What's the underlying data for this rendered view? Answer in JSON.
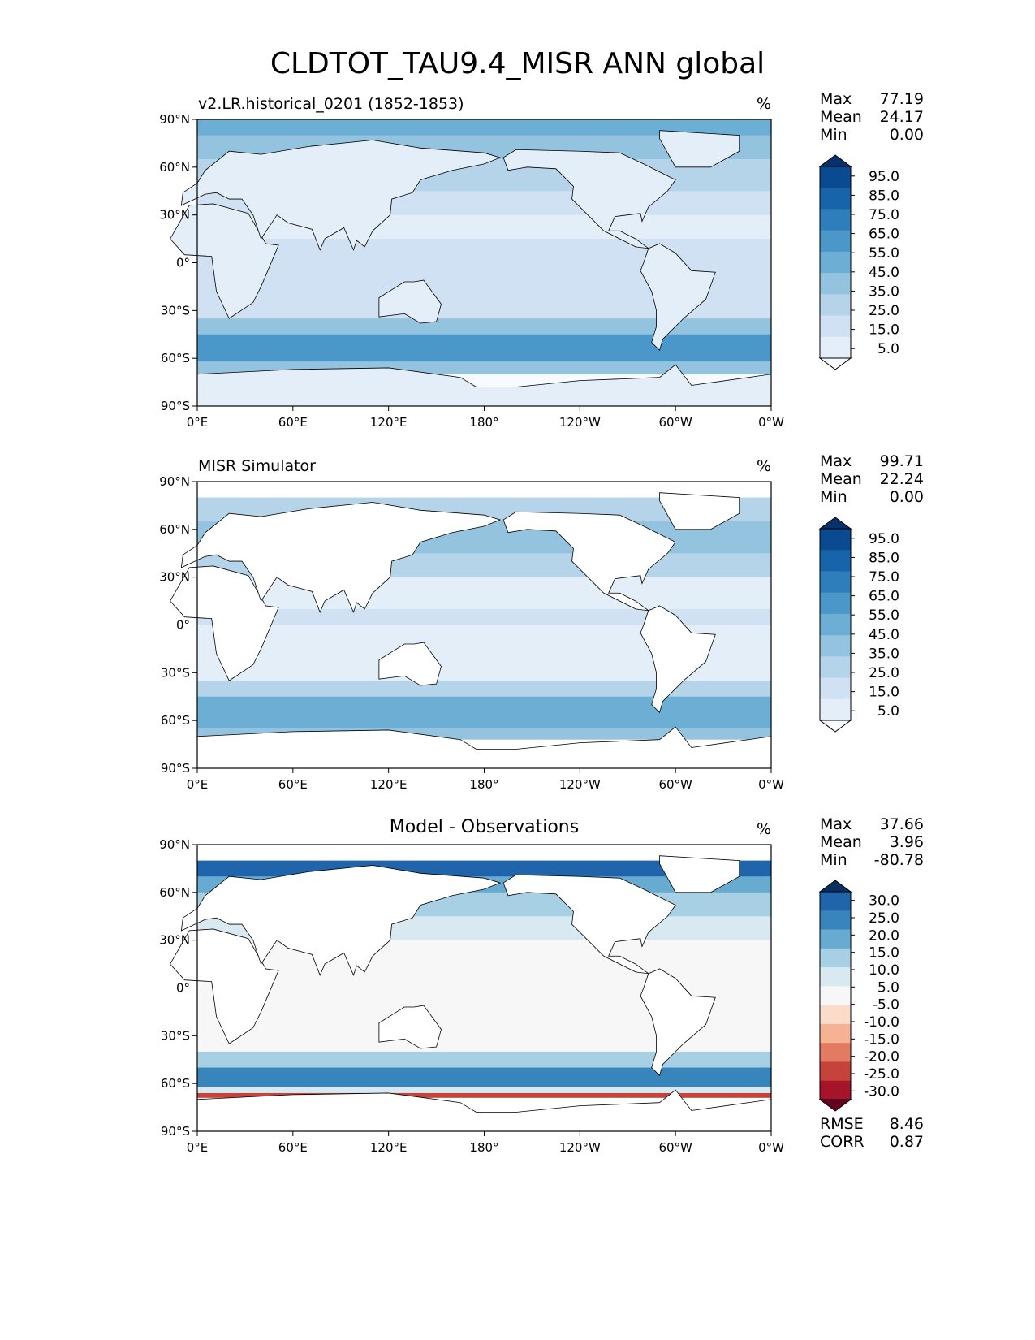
{
  "title": "CLDTOT_TAU9.4_MISR ANN global",
  "panels": [
    {
      "title": "v2.LR.historical_0201 (1852-1853)",
      "unit": "%",
      "title_centered": false,
      "stats": [
        {
          "label": "Max",
          "value": "77.19"
        },
        {
          "label": "Mean",
          "value": "24.17"
        },
        {
          "label": "Min",
          "value": "0.00"
        }
      ],
      "colorbar": {
        "colormap": "Blues",
        "ticks": [
          "95.0",
          "85.0",
          "75.0",
          "65.0",
          "55.0",
          "45.0",
          "35.0",
          "25.0",
          "15.0",
          "5.0"
        ],
        "colors": [
          "#08306b",
          "#0a4a90",
          "#1864aa",
          "#2f7ebc",
          "#4b97c9",
          "#6daed5",
          "#93c3df",
          "#b5d4e9",
          "#cfe1f2",
          "#e3eef9",
          "#f7fbff"
        ]
      }
    },
    {
      "title": "MISR Simulator",
      "unit": "%",
      "title_centered": false,
      "stats": [
        {
          "label": "Max",
          "value": "99.71"
        },
        {
          "label": "Mean",
          "value": "22.24"
        },
        {
          "label": "Min",
          "value": "0.00"
        }
      ],
      "colorbar": {
        "colormap": "Blues",
        "ticks": [
          "95.0",
          "85.0",
          "75.0",
          "65.0",
          "55.0",
          "45.0",
          "35.0",
          "25.0",
          "15.0",
          "5.0"
        ],
        "colors": [
          "#08306b",
          "#0a4a90",
          "#1864aa",
          "#2f7ebc",
          "#4b97c9",
          "#6daed5",
          "#93c3df",
          "#b5d4e9",
          "#cfe1f2",
          "#e3eef9",
          "#f7fbff"
        ]
      }
    },
    {
      "title": "Model - Observations",
      "unit": "%",
      "title_centered": true,
      "stats": [
        {
          "label": "Max",
          "value": "37.66"
        },
        {
          "label": "Mean",
          "value": "3.96"
        },
        {
          "label": "Min",
          "value": "-80.78"
        }
      ],
      "colorbar": {
        "colormap": "RdBu_r",
        "ticks": [
          "30.0",
          "25.0",
          "20.0",
          "15.0",
          "10.0",
          "5.0",
          "-5.0",
          "-10.0",
          "-15.0",
          "-20.0",
          "-25.0",
          "-30.0"
        ],
        "colors": [
          "#053061",
          "#2065ab",
          "#3885bc",
          "#68abd0",
          "#a7d0e4",
          "#d8e9f1",
          "#f7f7f7",
          "#fbdbc9",
          "#f6b293",
          "#e27b62",
          "#c6433c",
          "#a51429",
          "#67001f"
        ]
      },
      "metrics": [
        {
          "label": "RMSE",
          "value": "8.46"
        },
        {
          "label": "CORR",
          "value": "0.87"
        }
      ]
    }
  ],
  "axes": {
    "lat_ticks": [
      "90°N",
      "60°N",
      "30°N",
      "0°",
      "30°S",
      "60°S",
      "90°S"
    ],
    "lon_ticks": [
      "0°E",
      "60°E",
      "120°E",
      "180°",
      "120°W",
      "60°W",
      "0°W"
    ]
  }
}
